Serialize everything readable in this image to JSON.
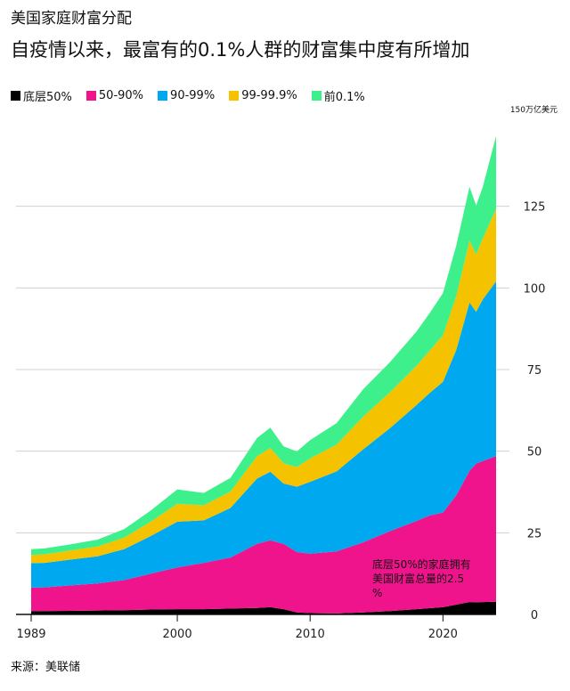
{
  "title": "美国家庭财富分配",
  "subtitle": "自疫情以来，最富有的0.1%人群的财富集中度有所增加",
  "unit": "150万亿美元",
  "source": "来源：美联储",
  "colors": {
    "bottom50": "#000000",
    "p50_90": "#f0148c",
    "p90_99": "#00a8f0",
    "p99_999": "#f5c200",
    "top01": "#3ef08c",
    "grid": "#d0d0d0"
  },
  "chart_data": {
    "type": "area",
    "stacked": true,
    "title": "美国家庭财富分配",
    "ylabel": "",
    "ylim": [
      0,
      150
    ],
    "yticks": [
      0,
      25,
      50,
      75,
      100,
      125
    ],
    "xticks": [
      1989,
      2000,
      2010,
      2020
    ],
    "grid": true,
    "legend_position": "top",
    "annotation": "底层50%的家庭拥有美国财富总量的2.5%",
    "x": [
      1989,
      1990,
      1992,
      1994,
      1996,
      1998,
      2000,
      2002,
      2004,
      2006,
      2007,
      2008,
      2009,
      2010,
      2012,
      2014,
      2016,
      2018,
      2019,
      2020,
      2021,
      2022,
      2022.5,
      2023,
      2024
    ],
    "series": [
      {
        "name": "底层50%",
        "values": [
          1,
          1,
          1.1,
          1.2,
          1.3,
          1.5,
          1.6,
          1.6,
          1.8,
          2.0,
          2.2,
          1.6,
          0.6,
          0.4,
          0.3,
          0.6,
          1.0,
          1.6,
          1.9,
          2.2,
          3.0,
          3.8,
          3.7,
          3.8,
          3.9
        ]
      },
      {
        "name": "50-90%",
        "values": [
          7.2,
          7.3,
          7.8,
          8.3,
          9.2,
          11.0,
          12.8,
          14.2,
          15.6,
          19.6,
          20.5,
          20.0,
          18.5,
          18.2,
          19.0,
          21.5,
          24.5,
          27.0,
          28.4,
          29.0,
          33.5,
          40.2,
          42.5,
          43.2,
          44.6
        ]
      },
      {
        "name": "90-99%",
        "values": [
          7.5,
          7.5,
          7.9,
          8.3,
          9.5,
          11.5,
          14.0,
          13.0,
          15.2,
          20.0,
          21.0,
          18.5,
          20.0,
          22.0,
          24.5,
          28.5,
          31.5,
          35.5,
          37.5,
          40.0,
          44.5,
          51.5,
          46.5,
          49.5,
          53.5
        ]
      },
      {
        "name": "99-99.9%",
        "values": [
          2.5,
          2.6,
          2.8,
          3.0,
          3.5,
          4.4,
          5.5,
          4.6,
          5.0,
          6.8,
          7.3,
          6.2,
          6.0,
          7.2,
          8.2,
          10.0,
          11.0,
          12.0,
          13.0,
          14.2,
          16.5,
          19.0,
          17.5,
          18.7,
          22.2
        ]
      },
      {
        "name": "前0.1%",
        "values": [
          1.8,
          1.8,
          1.9,
          2.1,
          2.6,
          3.4,
          4.4,
          3.8,
          4.2,
          5.6,
          6.2,
          5.2,
          4.8,
          5.6,
          6.6,
          8.4,
          9.2,
          10.5,
          11.5,
          13.0,
          15.5,
          16.5,
          15.0,
          15.8,
          22.3
        ]
      }
    ]
  }
}
